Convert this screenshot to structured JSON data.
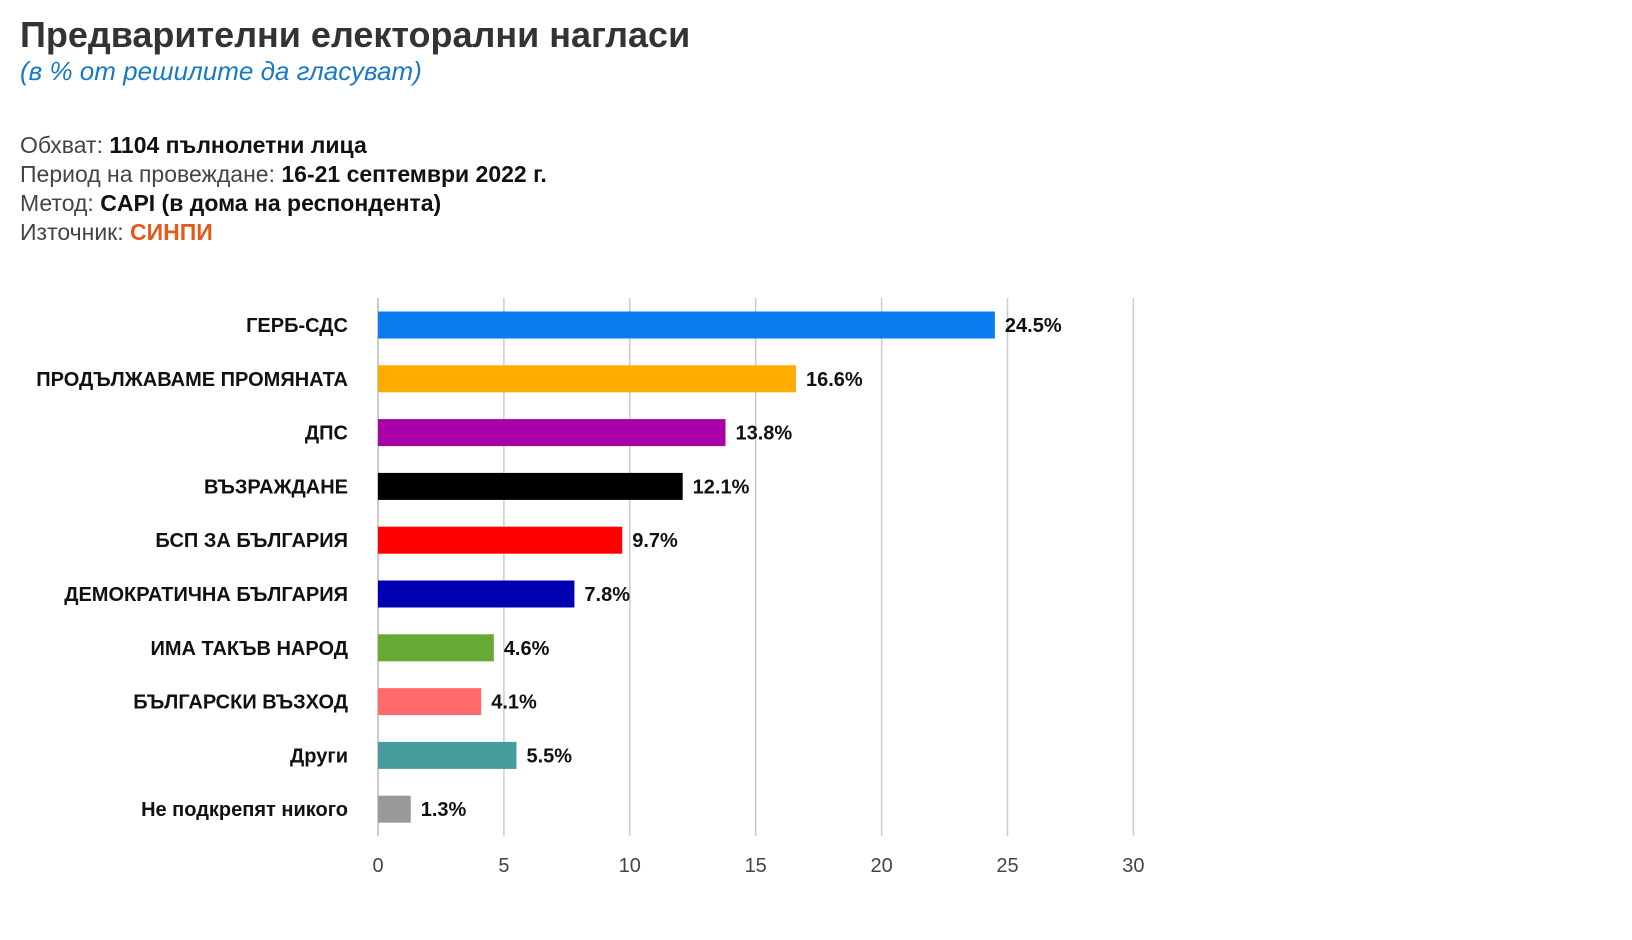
{
  "header": {
    "title": "Предварителни електорални нагласи",
    "subtitle": "(в % от решилите да гласуват)"
  },
  "meta": [
    {
      "label": "Обхват:",
      "value": "1104 пълнолетни лица"
    },
    {
      "label": "Период на провеждане:",
      "value": "16-21 септември 2022 г."
    },
    {
      "label": "Метод:",
      "value": "CAPI (в дома на респондента)"
    },
    {
      "label": "Източник:",
      "value": "СИНПИ"
    }
  ],
  "colors": {
    "subtitle": "#1a78c8",
    "source": "#e25a1c",
    "grid": "#cccccc"
  },
  "chart_data": {
    "type": "bar",
    "orientation": "horizontal",
    "categories": [
      "ГЕРБ-СДС",
      "ПРОДЪЛЖАВАМЕ ПРОМЯНАТА",
      "ДПС",
      "ВЪЗРАЖДАНЕ",
      "БСП ЗА БЪЛГАРИЯ",
      "ДЕМОКРАТИЧНА БЪЛГАРИЯ",
      "ИМА ТАКЪВ НАРОД",
      "БЪЛГАРСКИ ВЪЗХОД",
      "Други",
      "Не подкрепят никого"
    ],
    "values": [
      24.5,
      16.6,
      13.8,
      12.1,
      9.7,
      7.8,
      4.6,
      4.1,
      5.5,
      1.3
    ],
    "value_labels": [
      "24.5%",
      "16.6%",
      "13.8%",
      "12.1%",
      "9.7%",
      "7.8%",
      "4.6%",
      "4.1%",
      "5.5%",
      "1.3%"
    ],
    "bar_colors": [
      "#0a7cf0",
      "#ffab00",
      "#a700a7",
      "#000000",
      "#ff0000",
      "#0000b3",
      "#66aa33",
      "#ff6b6b",
      "#479d9d",
      "#999999"
    ],
    "xlim": [
      0,
      30
    ],
    "xticks": [
      0,
      5,
      10,
      15,
      20,
      25,
      30
    ],
    "grid": true
  }
}
